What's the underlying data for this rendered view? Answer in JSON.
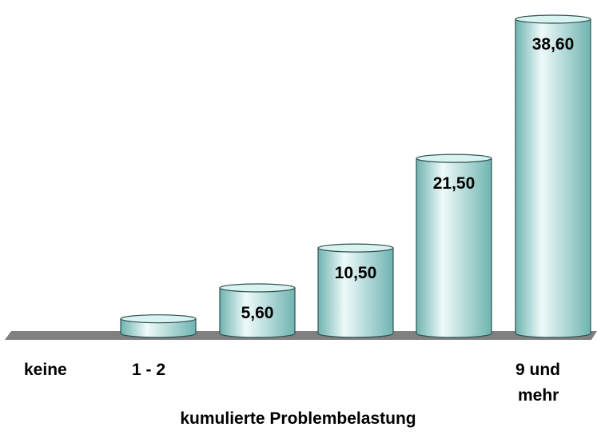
{
  "chart_data": {
    "type": "bar",
    "style": "3d-cylinder",
    "categories": [
      "keine",
      "1 - 2",
      "",
      "",
      "",
      "9 und mehr"
    ],
    "values": [
      0,
      1.8,
      5.6,
      10.5,
      21.5,
      38.6
    ],
    "data_labels": [
      "",
      "",
      "5,60",
      "10,50",
      "21,50",
      "38,60"
    ],
    "xlabel": "kumulierte Problembelastung",
    "ylabel": "",
    "ylim": [
      0,
      38.6
    ],
    "grid": false,
    "legend": "none",
    "colors": {
      "bar_body": "#b7e3e1",
      "bar_highlight": "#eefaf9",
      "bar_shade": "#6fb4b1",
      "bar_top": "#d9f3f1",
      "bar_outline": "#2f4f4f",
      "floor": "#808080"
    }
  }
}
